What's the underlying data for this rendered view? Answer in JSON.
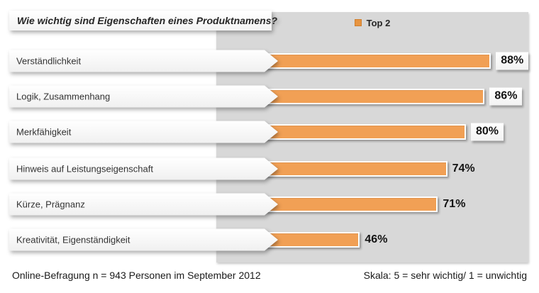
{
  "header": {
    "title": "Wie wichtig sind Eigenschaften eines Produktnamens?"
  },
  "legend": {
    "label": "Top 2",
    "marker_color": "#E79440"
  },
  "footer": {
    "left": "Online-Befragung n = 943 Personen im September 2012",
    "right": "Skala: 5 = sehr wichtig/ 1 = unwichtig"
  },
  "colors": {
    "bar": "#F1A055",
    "plot_background": "#D8D8D8",
    "page_background": "#FFFFFF"
  },
  "chart_data": {
    "type": "bar",
    "orientation": "horizontal",
    "title": "Wie wichtig sind Eigenschaften eines Produktnamens?",
    "legend_entries": [
      "Top 2"
    ],
    "legend_position": "top-center",
    "categories": [
      "Verständlichkeit",
      "Logik, Zusammenhang",
      "Merkfähigkeit",
      "Hinweis auf Leistungseigenschaft",
      "Kürze, Prägnanz",
      "Kreativität, Eigenständigkeit"
    ],
    "series": [
      {
        "name": "Top 2",
        "values": [
          88,
          86,
          80,
          74,
          71,
          46
        ]
      }
    ],
    "value_suffix": "%",
    "xlim": [
      0,
      100
    ],
    "grid": false,
    "rows": [
      {
        "label": "Verständlichkeit",
        "value": 88,
        "display": "88%",
        "boxed": true
      },
      {
        "label": "Logik, Zusammenhang",
        "value": 86,
        "display": "86%",
        "boxed": true
      },
      {
        "label": "Merkfähigkeit",
        "value": 80,
        "display": "80%",
        "boxed": true
      },
      {
        "label": "Hinweis auf Leistungseigenschaft",
        "value": 74,
        "display": "74%",
        "boxed": false
      },
      {
        "label": "Kürze, Prägnanz",
        "value": 71,
        "display": "71%",
        "boxed": false
      },
      {
        "label": "Kreativität, Eigenständigkeit",
        "value": 46,
        "display": "46%",
        "boxed": false
      }
    ]
  }
}
